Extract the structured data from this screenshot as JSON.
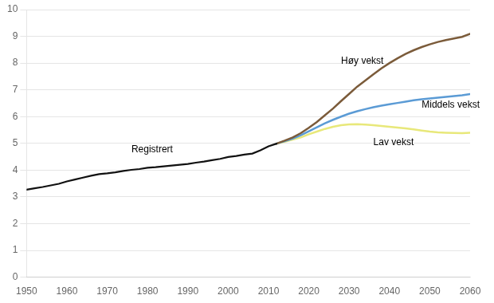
{
  "chart_data": {
    "type": "line",
    "xlim": [
      1950,
      2060
    ],
    "ylim": [
      0,
      10
    ],
    "xticks": [
      1950,
      1960,
      1970,
      1980,
      1990,
      2000,
      2010,
      2020,
      2030,
      2040,
      2050,
      2060
    ],
    "yticks": [
      0,
      1,
      2,
      3,
      4,
      5,
      6,
      7,
      8,
      9,
      10
    ],
    "grid": true,
    "series": [
      {
        "name": "Registrert",
        "color": "#111111",
        "x": [
          1950,
          1952,
          1954,
          1956,
          1958,
          1960,
          1962,
          1964,
          1966,
          1968,
          1970,
          1972,
          1974,
          1976,
          1978,
          1980,
          1982,
          1984,
          1986,
          1988,
          1990,
          1992,
          1994,
          1996,
          1998,
          2000,
          2002,
          2004,
          2006,
          2008,
          2010,
          2012
        ],
        "values": [
          3.27,
          3.32,
          3.37,
          3.43,
          3.49,
          3.58,
          3.65,
          3.72,
          3.79,
          3.85,
          3.88,
          3.92,
          3.97,
          4.01,
          4.04,
          4.09,
          4.11,
          4.14,
          4.17,
          4.2,
          4.23,
          4.28,
          4.32,
          4.37,
          4.42,
          4.49,
          4.53,
          4.58,
          4.62,
          4.74,
          4.89,
          4.99
        ]
      },
      {
        "name": "Høy vekst",
        "color": "#7B5B3A",
        "x": [
          2012,
          2014,
          2016,
          2018,
          2020,
          2022,
          2024,
          2026,
          2028,
          2030,
          2032,
          2034,
          2036,
          2038,
          2040,
          2042,
          2044,
          2046,
          2048,
          2050,
          2052,
          2054,
          2056,
          2058,
          2060
        ],
        "values": [
          4.99,
          5.1,
          5.22,
          5.38,
          5.58,
          5.8,
          6.05,
          6.3,
          6.58,
          6.85,
          7.12,
          7.35,
          7.58,
          7.8,
          8.0,
          8.18,
          8.34,
          8.48,
          8.6,
          8.7,
          8.79,
          8.86,
          8.92,
          8.98,
          9.09
        ]
      },
      {
        "name": "Middels vekst",
        "color": "#5B9BD5",
        "x": [
          2012,
          2014,
          2016,
          2018,
          2020,
          2022,
          2024,
          2026,
          2028,
          2030,
          2032,
          2034,
          2036,
          2038,
          2040,
          2042,
          2044,
          2046,
          2048,
          2050,
          2052,
          2054,
          2056,
          2058,
          2060
        ],
        "values": [
          4.99,
          5.08,
          5.18,
          5.3,
          5.45,
          5.6,
          5.75,
          5.88,
          6.0,
          6.11,
          6.2,
          6.28,
          6.35,
          6.41,
          6.46,
          6.51,
          6.56,
          6.61,
          6.65,
          6.68,
          6.71,
          6.74,
          6.77,
          6.8,
          6.84
        ]
      },
      {
        "name": "Lav vekst",
        "color": "#E8E87A",
        "x": [
          2012,
          2014,
          2016,
          2018,
          2020,
          2022,
          2024,
          2026,
          2028,
          2030,
          2032,
          2034,
          2036,
          2038,
          2040,
          2042,
          2044,
          2046,
          2048,
          2050,
          2052,
          2054,
          2056,
          2058,
          2060
        ],
        "values": [
          4.99,
          5.06,
          5.14,
          5.22,
          5.34,
          5.44,
          5.54,
          5.62,
          5.68,
          5.71,
          5.72,
          5.7,
          5.68,
          5.65,
          5.62,
          5.59,
          5.56,
          5.52,
          5.48,
          5.44,
          5.41,
          5.4,
          5.39,
          5.38,
          5.4
        ]
      }
    ],
    "annotations": [
      {
        "text": "Registrert",
        "x": 1976,
        "y": 4.6
      },
      {
        "text": "Høy vekst",
        "x": 2028,
        "y": 7.9
      },
      {
        "text": "Middels vekst",
        "x": 2048,
        "y": 6.42
      },
      {
        "text": "Lav vekst",
        "x": 2036,
        "y": 5.2
      }
    ]
  }
}
